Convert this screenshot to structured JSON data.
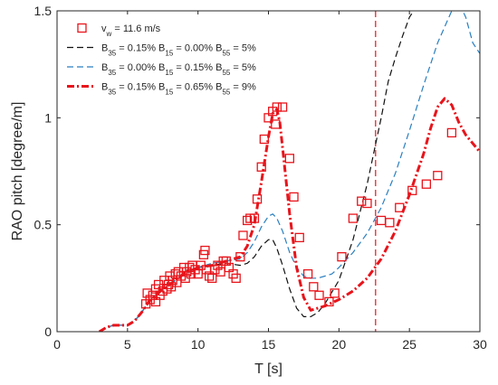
{
  "chart_data": {
    "type": "line",
    "title": "",
    "xlabel": "T [s]",
    "ylabel": "RAO pitch [degree/m]",
    "xlim": [
      0,
      30
    ],
    "ylim": [
      0,
      1.5
    ],
    "xticks": [
      0,
      5,
      10,
      15,
      20,
      25,
      30
    ],
    "yticks": [
      0,
      0.5,
      1,
      1.5
    ],
    "xtick_labels": [
      "0",
      "5",
      "10",
      "15",
      "20",
      "25",
      "30"
    ],
    "ytick_labels": [
      "0",
      "0.5",
      "1",
      "1.5"
    ],
    "grid": false,
    "legend_position": "top-left",
    "reference_line": {
      "x": 22.6,
      "color": "#e8141b",
      "style": "dashed"
    },
    "series": [
      {
        "name_parts": [
          [
            "v",
            "w",
            " = 11.6 m/s"
          ]
        ],
        "kind": "scatter",
        "marker": "square",
        "color": "#e8141b",
        "points": [
          [
            6.3,
            0.13
          ],
          [
            6.4,
            0.18
          ],
          [
            6.6,
            0.15
          ],
          [
            6.8,
            0.17
          ],
          [
            7.0,
            0.14
          ],
          [
            7.0,
            0.2
          ],
          [
            7.2,
            0.22
          ],
          [
            7.3,
            0.17
          ],
          [
            7.5,
            0.19
          ],
          [
            7.6,
            0.24
          ],
          [
            7.8,
            0.2
          ],
          [
            7.9,
            0.22
          ],
          [
            8.0,
            0.26
          ],
          [
            8.1,
            0.21
          ],
          [
            8.2,
            0.24
          ],
          [
            8.4,
            0.27
          ],
          [
            8.5,
            0.23
          ],
          [
            8.6,
            0.28
          ],
          [
            8.8,
            0.26
          ],
          [
            9.0,
            0.3
          ],
          [
            9.1,
            0.25
          ],
          [
            9.2,
            0.28
          ],
          [
            9.4,
            0.3
          ],
          [
            9.5,
            0.27
          ],
          [
            9.6,
            0.31
          ],
          [
            9.8,
            0.29
          ],
          [
            10.0,
            0.27
          ],
          [
            10.2,
            0.31
          ],
          [
            10.4,
            0.36
          ],
          [
            10.5,
            0.38
          ],
          [
            10.6,
            0.29
          ],
          [
            10.8,
            0.26
          ],
          [
            11.0,
            0.25
          ],
          [
            11.2,
            0.29
          ],
          [
            11.4,
            0.31
          ],
          [
            11.6,
            0.28
          ],
          [
            11.8,
            0.33
          ],
          [
            12.0,
            0.33
          ],
          [
            12.2,
            0.3
          ],
          [
            12.5,
            0.27
          ],
          [
            12.7,
            0.25
          ],
          [
            13.0,
            0.35
          ],
          [
            13.2,
            0.45
          ],
          [
            13.5,
            0.52
          ],
          [
            13.7,
            0.53
          ],
          [
            14.0,
            0.53
          ],
          [
            14.2,
            0.62
          ],
          [
            14.5,
            0.77
          ],
          [
            14.7,
            0.9
          ],
          [
            15.0,
            1.0
          ],
          [
            15.3,
            1.03
          ],
          [
            15.5,
            0.97
          ],
          [
            15.6,
            1.05
          ],
          [
            16.0,
            1.05
          ],
          [
            16.5,
            0.81
          ],
          [
            16.8,
            0.63
          ],
          [
            17.2,
            0.44
          ],
          [
            17.8,
            0.27
          ],
          [
            18.2,
            0.21
          ],
          [
            18.6,
            0.17
          ],
          [
            19.3,
            0.14
          ],
          [
            19.7,
            0.18
          ],
          [
            20.2,
            0.35
          ],
          [
            21.0,
            0.53
          ],
          [
            21.6,
            0.61
          ],
          [
            22.0,
            0.6
          ],
          [
            23.0,
            0.52
          ],
          [
            23.6,
            0.51
          ],
          [
            24.3,
            0.58
          ],
          [
            25.2,
            0.66
          ],
          [
            26.2,
            0.69
          ],
          [
            27.0,
            0.73
          ],
          [
            28.0,
            0.93
          ]
        ]
      },
      {
        "name_parts": [
          [
            "B",
            "35",
            " = 0.15% "
          ],
          [
            "B",
            "15",
            " = 0.00% "
          ],
          [
            "B",
            "55",
            " = 5%"
          ]
        ],
        "kind": "line",
        "style": "dashed",
        "color": "#111111",
        "x": [
          3.0,
          3.5,
          4.0,
          4.5,
          5.0,
          5.5,
          6.0,
          6.5,
          7.0,
          7.5,
          8.0,
          9.0,
          10.0,
          11.0,
          12.0,
          13.0,
          13.5,
          14.0,
          14.5,
          15.0,
          15.3,
          15.6,
          16.0,
          16.5,
          17.0,
          17.5,
          18.0,
          18.5,
          19.0,
          20.0,
          21.0,
          22.0,
          23.0,
          23.5,
          24.0,
          24.5,
          25.0,
          25.5
        ],
        "values": [
          0.0,
          0.02,
          0.03,
          0.03,
          0.03,
          0.05,
          0.09,
          0.14,
          0.17,
          0.2,
          0.22,
          0.27,
          0.3,
          0.31,
          0.32,
          0.31,
          0.32,
          0.35,
          0.4,
          0.43,
          0.43,
          0.39,
          0.31,
          0.2,
          0.11,
          0.07,
          0.07,
          0.09,
          0.13,
          0.24,
          0.43,
          0.69,
          1.0,
          1.17,
          1.28,
          1.38,
          1.47,
          1.52
        ]
      },
      {
        "name_parts": [
          [
            "B",
            "35",
            " = 0.00% "
          ],
          [
            "B",
            "15",
            " = 0.15% "
          ],
          [
            "B",
            "55",
            " = 5%"
          ]
        ],
        "kind": "line",
        "style": "dashed",
        "color": "#2a7fc0",
        "x": [
          3.0,
          3.5,
          4.0,
          4.5,
          5.0,
          5.5,
          6.0,
          6.5,
          7.0,
          7.5,
          8.0,
          9.0,
          10.0,
          11.0,
          12.0,
          13.0,
          13.5,
          14.0,
          14.5,
          15.0,
          15.3,
          15.6,
          16.0,
          16.5,
          17.0,
          17.5,
          18.0,
          18.5,
          19.0,
          19.5,
          20.0,
          21.0,
          22.0,
          23.0,
          24.0,
          25.0,
          26.0,
          27.0,
          28.0,
          28.5,
          29.0,
          29.5,
          30.0
        ],
        "values": [
          0.0,
          0.02,
          0.03,
          0.03,
          0.03,
          0.05,
          0.09,
          0.14,
          0.17,
          0.2,
          0.22,
          0.27,
          0.3,
          0.32,
          0.33,
          0.34,
          0.37,
          0.42,
          0.49,
          0.54,
          0.55,
          0.53,
          0.47,
          0.37,
          0.3,
          0.26,
          0.25,
          0.25,
          0.26,
          0.27,
          0.3,
          0.37,
          0.46,
          0.58,
          0.74,
          0.94,
          1.15,
          1.35,
          1.5,
          1.54,
          1.47,
          1.35,
          1.3
        ]
      },
      {
        "name_parts": [
          [
            "B",
            "35",
            " = 0.15% "
          ],
          [
            "B",
            "15",
            " = 0.65% "
          ],
          [
            "B",
            "55",
            " = 9%"
          ]
        ],
        "kind": "line",
        "style": "dashdot",
        "color": "#e8141b",
        "x": [
          3.0,
          3.5,
          4.0,
          4.5,
          5.0,
          5.5,
          6.0,
          6.5,
          7.0,
          7.5,
          8.0,
          9.0,
          10.0,
          11.0,
          12.0,
          13.0,
          13.5,
          14.0,
          14.5,
          15.0,
          15.3,
          15.6,
          15.8,
          16.0,
          16.5,
          17.0,
          17.5,
          18.0,
          18.5,
          19.0,
          20.0,
          21.0,
          22.0,
          23.0,
          24.0,
          25.0,
          26.0,
          26.5,
          27.0,
          27.5,
          28.0,
          28.5,
          29.0,
          30.0
        ],
        "values": [
          0.0,
          0.02,
          0.03,
          0.03,
          0.03,
          0.05,
          0.09,
          0.14,
          0.17,
          0.2,
          0.22,
          0.27,
          0.3,
          0.31,
          0.33,
          0.35,
          0.4,
          0.5,
          0.7,
          0.91,
          1.02,
          1.04,
          0.98,
          0.86,
          0.55,
          0.3,
          0.16,
          0.1,
          0.11,
          0.12,
          0.15,
          0.19,
          0.25,
          0.34,
          0.47,
          0.64,
          0.83,
          0.95,
          1.05,
          1.09,
          1.06,
          0.98,
          0.92,
          0.84
        ]
      }
    ]
  }
}
